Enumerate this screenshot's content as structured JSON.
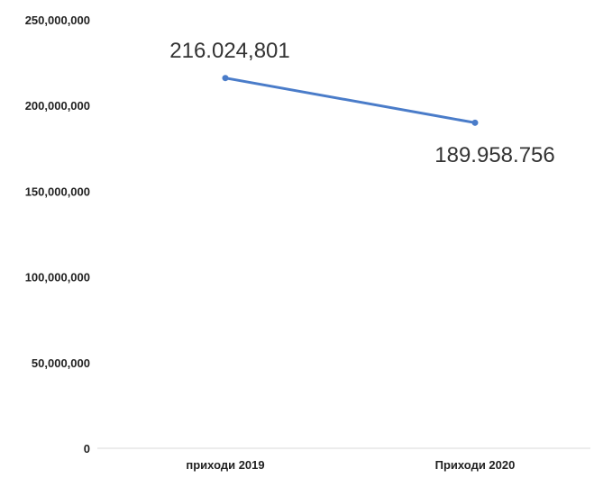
{
  "chart_data": {
    "type": "line",
    "categories": [
      "приходи 2019",
      "Приходи 2020"
    ],
    "series": [
      {
        "values": [
          216024801,
          189958756
        ],
        "data_labels": [
          "216.024,801",
          "189.958.756"
        ],
        "color": "#4a7cc9"
      }
    ],
    "ylim": [
      0,
      250000000
    ],
    "y_ticks": [
      0,
      50000000,
      100000000,
      150000000,
      200000000,
      250000000
    ],
    "y_tick_labels": [
      "0",
      "50,000,000",
      "100,000,000",
      "150,000,000",
      "200,000,000",
      "250,000,000"
    ],
    "grid": false,
    "legend": "none",
    "title": "",
    "xlabel": "",
    "ylabel": ""
  }
}
